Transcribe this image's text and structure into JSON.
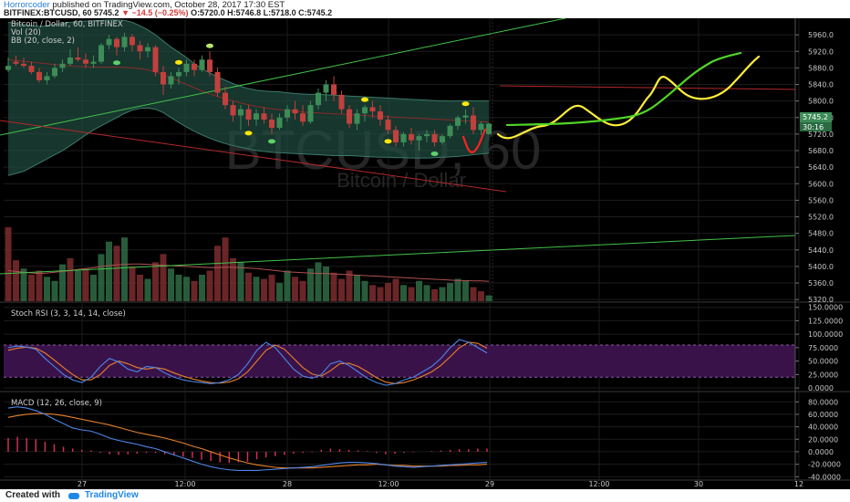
{
  "header": {
    "user": "Horrorcoder",
    "published": "published on TradingView.com, October 28, 2017 17:30 EST",
    "symbol": "BITFINEX:BTCUSD, 60",
    "last": "5745.2",
    "change": "−14.5 (−0.25%)",
    "ohlc": "O:5720.0 H:5746.8 L:5718.0 C:5745.2"
  },
  "footer": {
    "created_with": "Created with",
    "brand": "TradingView"
  },
  "legend": {
    "line1": "Bitcoin / Dollar, 60, BITFINEX",
    "line2": "Vol (20)",
    "line3": "BB (20, close, 2)"
  },
  "watermark": {
    "big": "BTCUSD, 60",
    "small": "Bitcoin / Dollar"
  },
  "price_tags": {
    "last": "5745.2",
    "countdown": "30:16"
  },
  "colors": {
    "background": "#000000",
    "up": "#3d8c58",
    "down": "#c2403d",
    "bb_fill": "#1f4d42",
    "stoch_band": "#3a124a",
    "k_line": "#4d86e8",
    "d_line": "#e8812a",
    "trend_green": "#43c24a",
    "trend_red": "#b3282c",
    "drawn_yellow": "#ffee3a",
    "drawn_green": "#52d628",
    "drawn_red": "#ff2222"
  },
  "chart_data": [
    {
      "type": "candlestick",
      "title": "Bitcoin / Dollar, 60, BITFINEX",
      "y_ticks": [
        5320,
        5360,
        5400,
        5440,
        5480,
        5520,
        5560,
        5600,
        5640,
        5680,
        5720,
        5760,
        5800,
        5840,
        5880,
        5920,
        5960
      ],
      "ylim": [
        5316,
        6000
      ],
      "x_ticks": [
        "27",
        "12:00",
        "28",
        "12:00",
        "29",
        "12:00",
        "30",
        "12"
      ],
      "ohlc": [
        [
          5875,
          5905,
          5870,
          5885
        ],
        [
          5895,
          5910,
          5885,
          5890
        ],
        [
          5890,
          5905,
          5880,
          5885
        ],
        [
          5885,
          5895,
          5865,
          5870
        ],
        [
          5870,
          5880,
          5845,
          5850
        ],
        [
          5850,
          5870,
          5840,
          5860
        ],
        [
          5860,
          5890,
          5855,
          5880
        ],
        [
          5880,
          5900,
          5870,
          5890
        ],
        [
          5890,
          5925,
          5885,
          5905
        ],
        [
          5905,
          5930,
          5895,
          5900
        ],
        [
          5900,
          5915,
          5880,
          5890
        ],
        [
          5890,
          5910,
          5880,
          5895
        ],
        [
          5895,
          5940,
          5890,
          5935
        ],
        [
          5935,
          5960,
          5925,
          5950
        ],
        [
          5950,
          5955,
          5910,
          5930
        ],
        [
          5930,
          5965,
          5920,
          5955
        ],
        [
          5955,
          5962,
          5920,
          5935
        ],
        [
          5935,
          5945,
          5900,
          5920
        ],
        [
          5920,
          5940,
          5905,
          5930
        ],
        [
          5930,
          5935,
          5860,
          5870
        ],
        [
          5870,
          5885,
          5815,
          5840
        ],
        [
          5840,
          5870,
          5830,
          5860
        ],
        [
          5860,
          5880,
          5840,
          5870
        ],
        [
          5870,
          5900,
          5860,
          5890
        ],
        [
          5890,
          5900,
          5860,
          5875
        ],
        [
          5875,
          5910,
          5870,
          5900
        ],
        [
          5900,
          5920,
          5860,
          5870
        ],
        [
          5870,
          5880,
          5810,
          5820
        ],
        [
          5820,
          5835,
          5780,
          5790
        ],
        [
          5790,
          5800,
          5750,
          5765
        ],
        [
          5765,
          5790,
          5730,
          5780
        ],
        [
          5780,
          5790,
          5740,
          5755
        ],
        [
          5755,
          5780,
          5740,
          5770
        ],
        [
          5770,
          5785,
          5745,
          5755
        ],
        [
          5755,
          5770,
          5720,
          5735
        ],
        [
          5735,
          5770,
          5730,
          5760
        ],
        [
          5760,
          5790,
          5750,
          5780
        ],
        [
          5780,
          5800,
          5755,
          5770
        ],
        [
          5770,
          5790,
          5740,
          5750
        ],
        [
          5750,
          5800,
          5745,
          5790
        ],
        [
          5790,
          5830,
          5780,
          5820
        ],
        [
          5820,
          5850,
          5800,
          5840
        ],
        [
          5840,
          5860,
          5800,
          5815
        ],
        [
          5815,
          5825,
          5770,
          5780
        ],
        [
          5780,
          5790,
          5735,
          5745
        ],
        [
          5745,
          5780,
          5730,
          5770
        ],
        [
          5770,
          5790,
          5750,
          5785
        ],
        [
          5785,
          5800,
          5760,
          5775
        ],
        [
          5775,
          5790,
          5740,
          5755
        ],
        [
          5755,
          5765,
          5720,
          5730
        ],
        [
          5730,
          5740,
          5690,
          5700
        ],
        [
          5700,
          5725,
          5690,
          5720
        ],
        [
          5720,
          5735,
          5695,
          5705
        ],
        [
          5705,
          5720,
          5680,
          5715
        ],
        [
          5715,
          5730,
          5700,
          5720
        ],
        [
          5720,
          5730,
          5690,
          5700
        ],
        [
          5700,
          5720,
          5695,
          5715
        ],
        [
          5715,
          5745,
          5710,
          5740
        ],
        [
          5740,
          5765,
          5730,
          5760
        ],
        [
          5760,
          5780,
          5745,
          5765
        ],
        [
          5765,
          5785,
          5720,
          5730
        ],
        [
          5730,
          5750,
          5718,
          5745
        ],
        [
          5720,
          5746.8,
          5718,
          5745.2
        ]
      ],
      "volume": [
        [
          5495,
          "down"
        ],
        [
          5415,
          "down"
        ],
        [
          5395,
          "up"
        ],
        [
          5380,
          "down"
        ],
        [
          5390,
          "down"
        ],
        [
          5375,
          "up"
        ],
        [
          5365,
          "up"
        ],
        [
          5405,
          "up"
        ],
        [
          5420,
          "down"
        ],
        [
          5390,
          "up"
        ],
        [
          5395,
          "down"
        ],
        [
          5380,
          "up"
        ],
        [
          5430,
          "up"
        ],
        [
          5460,
          "up"
        ],
        [
          5450,
          "down"
        ],
        [
          5470,
          "up"
        ],
        [
          5400,
          "down"
        ],
        [
          5380,
          "down"
        ],
        [
          5370,
          "up"
        ],
        [
          5410,
          "down"
        ],
        [
          5430,
          "down"
        ],
        [
          5395,
          "up"
        ],
        [
          5380,
          "up"
        ],
        [
          5375,
          "up"
        ],
        [
          5365,
          "down"
        ],
        [
          5380,
          "up"
        ],
        [
          5390,
          "down"
        ],
        [
          5450,
          "down"
        ],
        [
          5470,
          "down"
        ],
        [
          5420,
          "down"
        ],
        [
          5410,
          "up"
        ],
        [
          5385,
          "down"
        ],
        [
          5375,
          "up"
        ],
        [
          5370,
          "down"
        ],
        [
          5380,
          "down"
        ],
        [
          5360,
          "up"
        ],
        [
          5390,
          "up"
        ],
        [
          5375,
          "down"
        ],
        [
          5365,
          "down"
        ],
        [
          5395,
          "up"
        ],
        [
          5410,
          "up"
        ],
        [
          5400,
          "up"
        ],
        [
          5385,
          "down"
        ],
        [
          5370,
          "down"
        ],
        [
          5390,
          "down"
        ],
        [
          5380,
          "up"
        ],
        [
          5365,
          "up"
        ],
        [
          5355,
          "down"
        ],
        [
          5350,
          "down"
        ],
        [
          5360,
          "down"
        ],
        [
          5370,
          "down"
        ],
        [
          5355,
          "up"
        ],
        [
          5350,
          "down"
        ],
        [
          5365,
          "up"
        ],
        [
          5355,
          "up"
        ],
        [
          5345,
          "down"
        ],
        [
          5350,
          "up"
        ],
        [
          5360,
          "up"
        ],
        [
          5370,
          "up"
        ],
        [
          5365,
          "up"
        ],
        [
          5350,
          "down"
        ],
        [
          5340,
          "down"
        ],
        [
          5330,
          "up"
        ]
      ],
      "volume_ma": [
        5390,
        5388,
        5386,
        5384,
        5383,
        5384,
        5386,
        5388,
        5390,
        5393,
        5395,
        5397,
        5400,
        5402,
        5404,
        5405,
        5406,
        5406,
        5405,
        5404,
        5403,
        5402,
        5401,
        5400,
        5399,
        5398,
        5397,
        5397,
        5398,
        5398,
        5397,
        5396,
        5395,
        5393,
        5391,
        5389,
        5387,
        5386,
        5385,
        5384,
        5383,
        5383,
        5382,
        5381,
        5380,
        5379,
        5378,
        5377,
        5376,
        5375,
        5374,
        5373,
        5372,
        5371,
        5370,
        5369,
        5368,
        5367,
        5366,
        5366,
        5365,
        5365,
        5364
      ],
      "bb_upper": [
        5990,
        5988,
        5985,
        5982,
        5980,
        5982,
        5985,
        5988,
        5990,
        5992,
        5993,
        5994,
        5995,
        5996,
        5996,
        5995,
        5990,
        5982,
        5972,
        5960,
        5945,
        5930,
        5918,
        5905,
        5890,
        5878,
        5868,
        5858,
        5850,
        5842,
        5835,
        5830,
        5826,
        5824,
        5823,
        5822,
        5820,
        5818,
        5817,
        5816,
        5816,
        5815,
        5814,
        5813,
        5812,
        5811,
        5810,
        5809,
        5808,
        5807,
        5806,
        5805,
        5804,
        5803,
        5802,
        5801,
        5800,
        5800,
        5800,
        5800,
        5800,
        5800,
        5800
      ],
      "bb_lower": [
        5620,
        5625,
        5630,
        5640,
        5650,
        5660,
        5670,
        5680,
        5692,
        5705,
        5718,
        5730,
        5740,
        5750,
        5760,
        5770,
        5778,
        5782,
        5783,
        5780,
        5772,
        5760,
        5748,
        5737,
        5727,
        5718,
        5710,
        5703,
        5697,
        5692,
        5688,
        5684,
        5680,
        5678,
        5676,
        5675,
        5674,
        5673,
        5672,
        5671,
        5670,
        5669,
        5668,
        5668,
        5668,
        5667,
        5666,
        5665,
        5664,
        5664,
        5663,
        5663,
        5662,
        5662,
        5662,
        5663,
        5664,
        5665,
        5666,
        5668,
        5670,
        5672,
        5674
      ],
      "bb_basis": [
        5900,
        5898,
        5896,
        5894,
        5892,
        5890,
        5888,
        5886,
        5885,
        5884,
        5883,
        5882,
        5882,
        5882,
        5882,
        5881,
        5880,
        5878,
        5875,
        5870,
        5864,
        5856,
        5848,
        5840,
        5832,
        5824,
        5817,
        5811,
        5805,
        5800,
        5795,
        5791,
        5787,
        5784,
        5781,
        5779,
        5777,
        5775,
        5773,
        5772,
        5771,
        5770,
        5769,
        5768,
        5767,
        5766,
        5765,
        5764,
        5763,
        5762,
        5761,
        5760,
        5759,
        5758,
        5757,
        5756,
        5755,
        5754,
        5753,
        5752,
        5751,
        5750,
        5749
      ]
    },
    {
      "type": "line",
      "title": "Stoch RSI (3, 3, 14, 14, close)",
      "y_ticks": [
        0,
        25,
        50,
        75,
        100,
        125,
        150
      ],
      "ylim": [
        -5,
        158
      ],
      "band": [
        20,
        80
      ],
      "series": [
        {
          "values": [
            75,
            78,
            76,
            72,
            55,
            40,
            25,
            15,
            10,
            20,
            40,
            55,
            48,
            35,
            30,
            40,
            38,
            28,
            20,
            15,
            12,
            10,
            8,
            10,
            15,
            25,
            45,
            70,
            85,
            75,
            55,
            35,
            22,
            18,
            25,
            45,
            50,
            42,
            30,
            18,
            10,
            5,
            8,
            15,
            20,
            30,
            40,
            55,
            75,
            90,
            85,
            75,
            65
          ]
        },
        {
          "values": [
            70,
            74,
            76,
            74,
            65,
            52,
            38,
            25,
            15,
            15,
            25,
            42,
            50,
            45,
            38,
            35,
            38,
            35,
            28,
            22,
            17,
            13,
            10,
            9,
            11,
            17,
            30,
            50,
            70,
            80,
            72,
            55,
            38,
            26,
            22,
            32,
            45,
            46,
            40,
            30,
            19,
            11,
            8,
            10,
            15,
            22,
            30,
            42,
            58,
            75,
            85,
            83,
            74
          ]
        }
      ]
    },
    {
      "type": "bar",
      "title": "MACD (12, 26, close, 9)",
      "y_ticks": [
        -40,
        -20,
        0,
        20,
        40,
        60,
        80
      ],
      "ylim": [
        -44,
        95
      ],
      "histogram": [
        22,
        24,
        22,
        20,
        16,
        12,
        8,
        5,
        3,
        2,
        -2,
        -4,
        -5,
        -4,
        -3,
        -2,
        -2,
        -4,
        -6,
        -8,
        -10,
        -13,
        -15,
        -17,
        -18,
        -17,
        -16,
        -12,
        -9,
        -7,
        -5,
        -3,
        -2,
        -1,
        3,
        5,
        4,
        3,
        2,
        1,
        -2,
        -4,
        -3,
        -2,
        -1,
        0,
        1,
        2,
        3,
        4,
        4,
        5,
        5
      ],
      "series": [
        {
          "values": [
            70,
            72,
            70,
            66,
            60,
            52,
            45,
            38,
            35,
            33,
            28,
            22,
            18,
            15,
            12,
            8,
            5,
            0,
            -5,
            -10,
            -15,
            -20,
            -24,
            -27,
            -29,
            -30,
            -30,
            -30,
            -29,
            -28,
            -27,
            -26,
            -25,
            -24,
            -22,
            -20,
            -18,
            -17,
            -17,
            -18,
            -19,
            -21,
            -23,
            -24,
            -25,
            -24,
            -23,
            -22,
            -21,
            -20,
            -19,
            -18,
            -17
          ]
        },
        {
          "values": [
            55,
            58,
            60,
            61,
            61,
            60,
            58,
            55,
            52,
            49,
            46,
            43,
            39,
            35,
            31,
            28,
            25,
            22,
            18,
            14,
            9,
            5,
            0,
            -5,
            -10,
            -14,
            -18,
            -21,
            -23,
            -25,
            -26,
            -26,
            -26,
            -26,
            -25,
            -24,
            -23,
            -22,
            -21,
            -21,
            -20,
            -21,
            -22,
            -22,
            -23,
            -23,
            -23,
            -23,
            -22,
            -22,
            -21,
            -21,
            -20
          ]
        }
      ]
    }
  ]
}
